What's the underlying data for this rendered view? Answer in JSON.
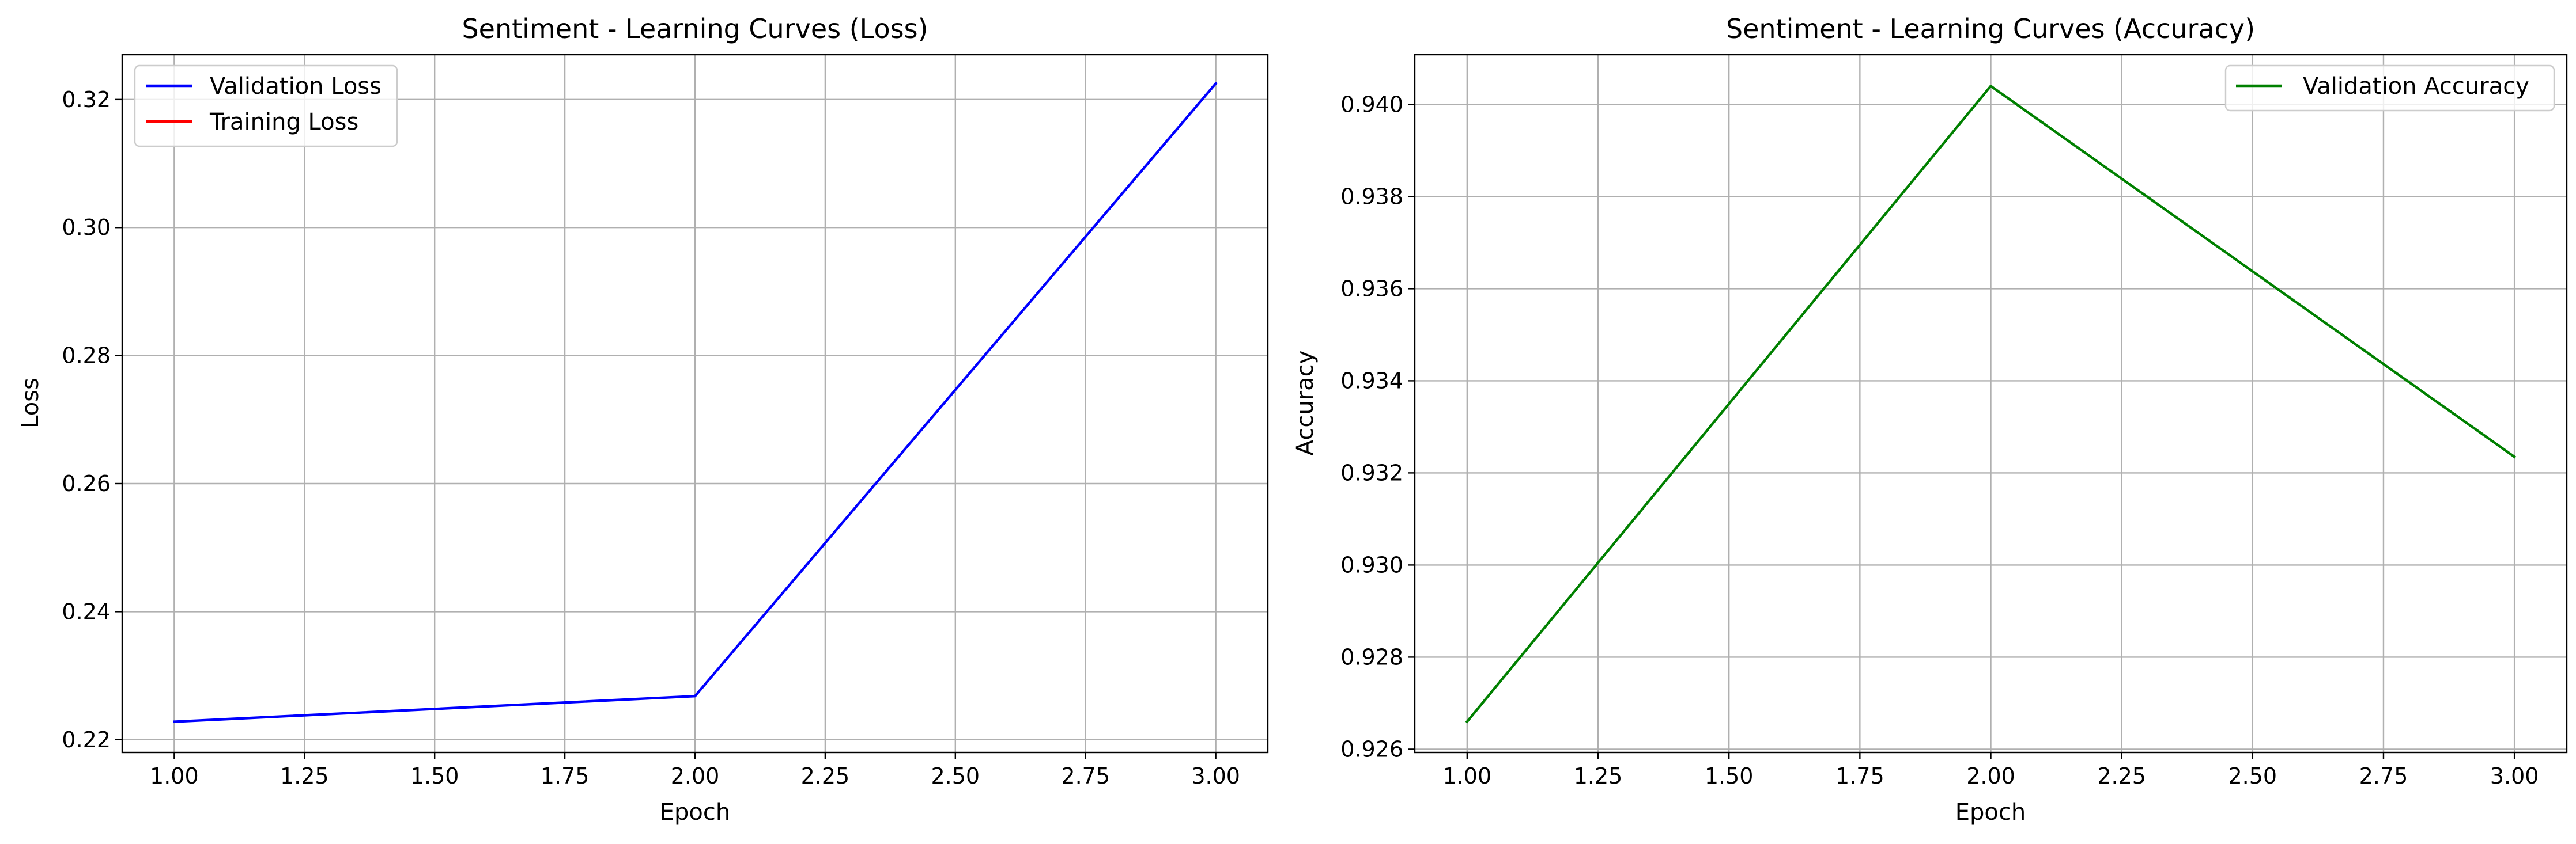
{
  "chart_data": [
    {
      "type": "line",
      "title": "Sentiment - Learning Curves (Loss)",
      "xlabel": "Epoch",
      "ylabel": "Loss",
      "xlim": [
        0.9,
        3.1
      ],
      "ylim": [
        0.218,
        0.327
      ],
      "xticks": [
        1.0,
        1.25,
        1.5,
        1.75,
        2.0,
        2.25,
        2.5,
        2.75,
        3.0
      ],
      "xtick_labels": [
        "1.00",
        "1.25",
        "1.50",
        "1.75",
        "2.00",
        "2.25",
        "2.50",
        "2.75",
        "3.00"
      ],
      "yticks": [
        0.22,
        0.24,
        0.26,
        0.28,
        0.3,
        0.32
      ],
      "ytick_labels": [
        "0.22",
        "0.24",
        "0.26",
        "0.28",
        "0.30",
        "0.32"
      ],
      "grid": true,
      "legend_position": "top-left",
      "series": [
        {
          "name": "Validation Loss",
          "color": "#0000ff",
          "x": [
            1.0,
            2.0,
            3.0
          ],
          "y": [
            0.2228,
            0.2268,
            0.3225
          ]
        },
        {
          "name": "Training Loss",
          "color": "#ff0000",
          "x": [],
          "y": []
        }
      ]
    },
    {
      "type": "line",
      "title": "Sentiment - Learning Curves (Accuracy)",
      "xlabel": "Epoch",
      "ylabel": "Accuracy",
      "xlim": [
        0.9,
        3.1
      ],
      "ylim": [
        0.92593,
        0.94108
      ],
      "xticks": [
        1.0,
        1.25,
        1.5,
        1.75,
        2.0,
        2.25,
        2.5,
        2.75,
        3.0
      ],
      "xtick_labels": [
        "1.00",
        "1.25",
        "1.50",
        "1.75",
        "2.00",
        "2.25",
        "2.50",
        "2.75",
        "3.00"
      ],
      "yticks": [
        0.926,
        0.928,
        0.93,
        0.932,
        0.934,
        0.936,
        0.938,
        0.94
      ],
      "ytick_labels": [
        "0.926",
        "0.928",
        "0.930",
        "0.932",
        "0.934",
        "0.936",
        "0.938",
        "0.940"
      ],
      "grid": true,
      "legend_position": "top-right",
      "series": [
        {
          "name": "Validation Accuracy",
          "color": "#008000",
          "x": [
            1.0,
            2.0,
            3.0
          ],
          "y": [
            0.9266,
            0.9404,
            0.93235
          ]
        }
      ]
    }
  ]
}
